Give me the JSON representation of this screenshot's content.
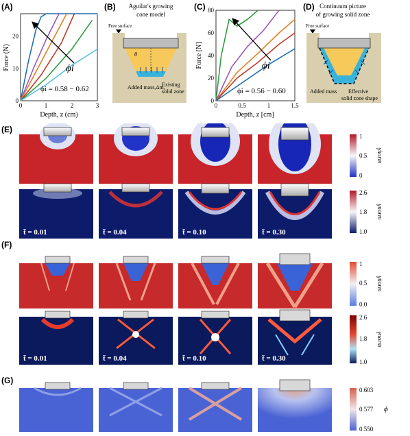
{
  "panels": {
    "A": {
      "label": "(A)",
      "xlabel": "Depth, z (cm)",
      "ylabel": "Force (N)",
      "xticks": [
        "0",
        "1",
        "2",
        "3"
      ],
      "yticks": [
        "0",
        "10",
        "20"
      ],
      "arrow_label": "ϕi",
      "annotation": "ϕi = 0.58 − 0.62"
    },
    "B": {
      "label": "(B)",
      "title_line1": "Aguilar's growing",
      "title_line2": "cone model",
      "free_surface": "Free surface",
      "theta": "θ",
      "added_mass": "Added mass,Δmₐ",
      "existing_line1": "Existing",
      "existing_line2": "solid zone"
    },
    "C": {
      "label": "(C)",
      "xlabel": "Depth, z [cm]",
      "ylabel": "Force [N]",
      "xticks": [
        "0",
        "0.5",
        "1",
        "1.5"
      ],
      "yticks": [
        "0",
        "20",
        "40",
        "60",
        "80"
      ],
      "arrow_label": "ϕi",
      "annotation": "ϕi = 0.56 − 0.60"
    },
    "D": {
      "label": "(D)",
      "title_line1": "Continuum picture",
      "title_line2": "of growing solid zone",
      "free_surface": "Free surface",
      "added_mass": "Added mass",
      "effective_line1": "Effective",
      "effective_line2": "solid zone shape"
    },
    "E": {
      "label": "(E)",
      "times": [
        "t̃ = 0.01",
        "t̃ = 0.04",
        "t̃ = 0.10",
        "t̃ = 0.30"
      ],
      "cb_top": {
        "ticks": [
          "1",
          "0.5",
          "0"
        ],
        "label": "γ̇norm"
      },
      "cb_bottom": {
        "ticks": [
          "2.6",
          "1.8",
          "1.0"
        ],
        "label": "γnorm"
      }
    },
    "F": {
      "label": "(F)",
      "times": [
        "t̃ = 0.01",
        "t̃ = 0.04",
        "t̃ = 0.10",
        "t̃ = 0.30"
      ],
      "cb_top": {
        "ticks": [
          "1",
          "0.5",
          "0.0"
        ],
        "label": "γ̇norm"
      },
      "cb_bottom": {
        "ticks": [
          "2.6",
          "1.8",
          "1.0"
        ],
        "label": "γnorm"
      }
    },
    "G": {
      "label": "(G)",
      "cb": {
        "ticks": [
          "0.603",
          "0.577",
          "0.550"
        ],
        "label": "ϕ"
      }
    }
  },
  "colors": {
    "red_field": "#c8252b",
    "blue_field": "#0d1b6b",
    "fem_red": "#c62a2a",
    "fem_navy": "#0a1a5c",
    "phi_blue": "#4a63d4",
    "sand": "#d9cfae",
    "solid_zone": "#f7c85a",
    "added_mass": "#38b4dc"
  },
  "chart_data": [
    {
      "type": "line",
      "panel": "A",
      "xlabel": "Depth, z (cm)",
      "ylabel": "Force (N)",
      "xlim": [
        0,
        3
      ],
      "ylim": [
        0,
        27
      ],
      "series": [
        {
          "color": "#1f6fb5",
          "x": [
            0,
            0.3,
            0.6,
            0.8,
            1.0,
            3.0
          ],
          "y": [
            0,
            12,
            22,
            26,
            27,
            27
          ]
        },
        {
          "color": "#9b59b6",
          "x": [
            0,
            0.5,
            1.0,
            1.5
          ],
          "y": [
            0,
            10,
            19,
            27
          ]
        },
        {
          "color": "#e67e22",
          "x": [
            0,
            0.6,
            1.2,
            1.8
          ],
          "y": [
            0,
            9,
            18,
            27
          ]
        },
        {
          "color": "#c0392b",
          "x": [
            0,
            0.8,
            1.6,
            2.1
          ],
          "y": [
            0,
            8,
            18,
            27
          ]
        },
        {
          "color": "#2e9e3e",
          "x": [
            0,
            1.0,
            2.0,
            2.8
          ],
          "y": [
            0,
            7,
            16,
            25
          ]
        },
        {
          "color": "#5bc0eb",
          "x": [
            0,
            1.0,
            2.0,
            3.0
          ],
          "y": [
            0,
            5,
            11,
            16
          ]
        }
      ]
    },
    {
      "type": "line",
      "panel": "C",
      "xlabel": "Depth, z [cm]",
      "ylabel": "Force [N]",
      "xlim": [
        0,
        1.5
      ],
      "ylim": [
        0,
        80
      ],
      "series": [
        {
          "color": "#2e9e3e",
          "x": [
            0,
            0.1,
            0.25,
            0.4,
            0.6,
            0.8
          ],
          "y": [
            0,
            40,
            72,
            66,
            72,
            80
          ]
        },
        {
          "color": "#9b59b6",
          "x": [
            0,
            0.3,
            0.6,
            0.9,
            1.2
          ],
          "y": [
            0,
            30,
            48,
            62,
            80
          ]
        },
        {
          "color": "#e67e22",
          "x": [
            0,
            0.4,
            0.8,
            1.2,
            1.5
          ],
          "y": [
            0,
            25,
            42,
            60,
            72
          ]
        },
        {
          "color": "#c0392b",
          "x": [
            0,
            0.4,
            0.8,
            1.2,
            1.5
          ],
          "y": [
            0,
            20,
            34,
            50,
            60
          ]
        },
        {
          "color": "#1f6fb5",
          "x": [
            0,
            0.5,
            1.0,
            1.5
          ],
          "y": [
            0,
            16,
            32,
            46
          ]
        }
      ]
    }
  ]
}
